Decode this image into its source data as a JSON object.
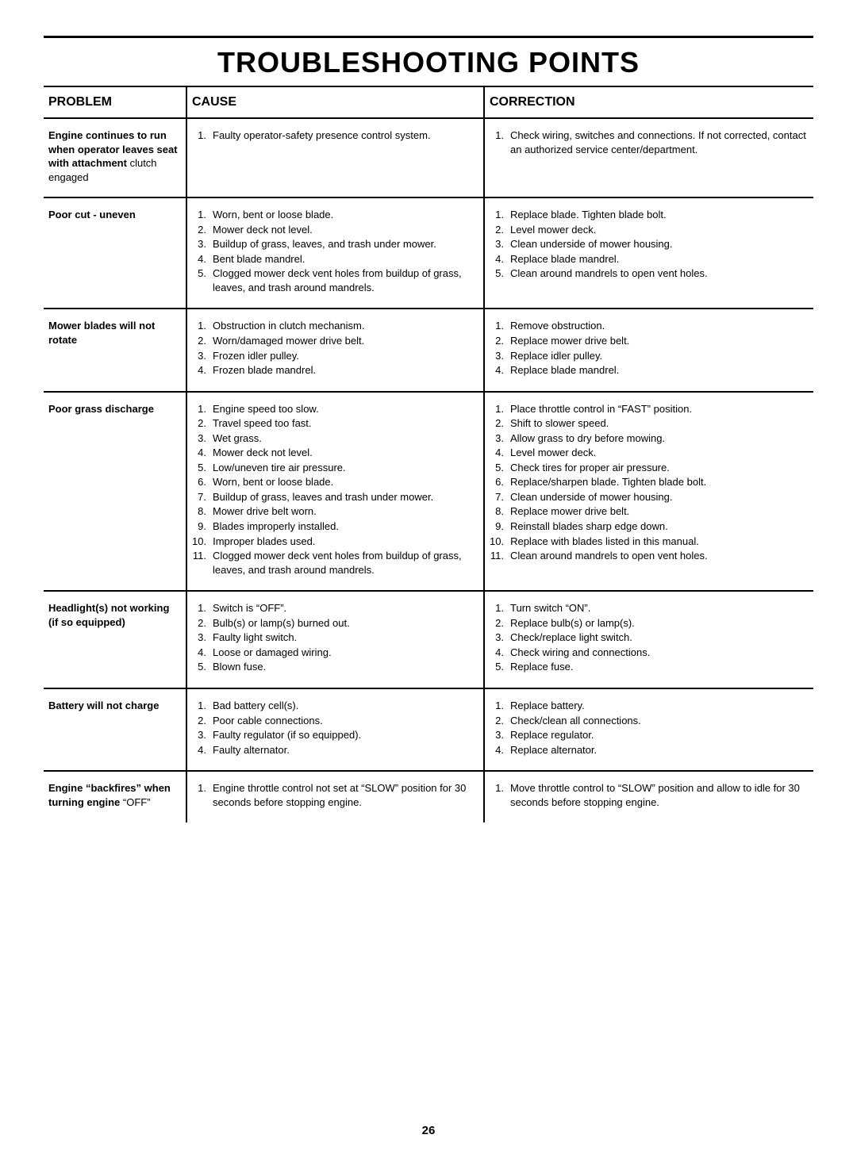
{
  "page": {
    "title": "TROUBLESHOOTING POINTS",
    "page_number": "26"
  },
  "headers": {
    "problem": "PROBLEM",
    "cause": "CAUSE",
    "correction": "CORRECTION"
  },
  "rows": [
    {
      "problem_bold": "Engine continues to run when operator leaves seat with attachment",
      "problem_rest": " clutch engaged",
      "causes": [
        "Faulty operator-safety presence control system."
      ],
      "corrections": [
        "Check wiring, switches and connections. If not corrected, contact an authorized service center/department."
      ]
    },
    {
      "problem_bold": "Poor cut - uneven",
      "problem_rest": "",
      "causes": [
        "Worn, bent or loose blade.",
        "Mower deck not level.",
        "Buildup of grass, leaves, and trash under mower.",
        "Bent blade mandrel.",
        "Clogged mower deck vent holes from buildup of grass, leaves, and trash around mandrels."
      ],
      "corrections": [
        "Replace blade. Tighten blade bolt.",
        "Level mower deck.",
        "Clean underside of mower housing.",
        "Replace blade mandrel.",
        "Clean around mandrels to open vent holes."
      ]
    },
    {
      "problem_bold": "Mower blades will not rotate",
      "problem_rest": "",
      "causes": [
        "Obstruction in clutch mechanism.",
        "Worn/damaged mower drive belt.",
        "Frozen idler pulley.",
        "Frozen blade mandrel."
      ],
      "corrections": [
        "Remove obstruction.",
        "Replace mower drive belt.",
        "Replace idler pulley.",
        "Replace blade mandrel."
      ]
    },
    {
      "problem_bold": "Poor grass discharge",
      "problem_rest": "",
      "causes": [
        "Engine speed too slow.",
        "Travel speed too fast.",
        "Wet grass.",
        "Mower deck not level.",
        "Low/uneven tire air pressure.",
        "Worn, bent or loose blade.",
        "Buildup of grass, leaves and trash under mower.",
        "Mower drive belt worn.",
        "Blades improperly installed.",
        "Improper blades used.",
        "Clogged mower deck vent holes from buildup of grass, leaves, and trash around mandrels."
      ],
      "corrections": [
        "Place throttle control in “FAST” position.",
        "Shift to slower speed.",
        "Allow grass to dry before mowing.",
        "Level mower deck.",
        "Check tires for proper air pressure.",
        "Replace/sharpen blade. Tighten blade bolt.",
        "Clean underside of mower housing.",
        "Replace mower drive belt.",
        "Reinstall blades sharp edge down.",
        "Replace with blades listed in this manual.",
        "Clean around mandrels to open vent holes."
      ]
    },
    {
      "problem_bold": "Headlight(s) not working (if so equipped)",
      "problem_rest": "",
      "causes": [
        "Switch is “OFF”.",
        "Bulb(s) or lamp(s) burned out.",
        "Faulty light switch.",
        "Loose or damaged wiring.",
        "Blown fuse."
      ],
      "corrections": [
        "Turn switch “ON”.",
        "Replace bulb(s) or lamp(s).",
        "Check/replace light switch.",
        "Check wiring and connections.",
        "Replace fuse."
      ]
    },
    {
      "problem_bold": "Battery will not charge",
      "problem_rest": "",
      "causes": [
        "Bad battery cell(s).",
        "Poor cable connections.",
        "Faulty regulator (if so equipped).",
        "Faulty alternator."
      ],
      "corrections": [
        "Replace battery.",
        "Check/clean all connections.",
        "Replace regulator.",
        "Replace alternator."
      ]
    },
    {
      "problem_bold": "Engine “backfires” when turning engine",
      "problem_rest": " “OFF”",
      "causes": [
        "Engine throttle control not set at “SLOW” position for 30 seconds before stopping engine."
      ],
      "corrections": [
        "Move throttle control to “SLOW” position and allow to idle for 30 seconds before stopping engine."
      ]
    }
  ]
}
